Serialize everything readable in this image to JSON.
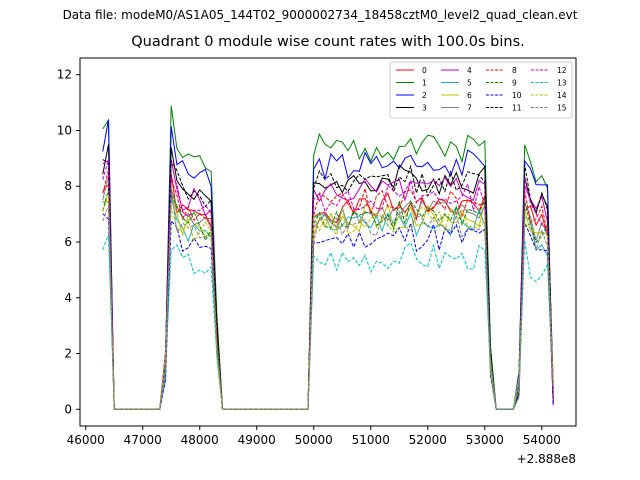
{
  "figure": {
    "suptitle": "Data file: modeM0/AS1A05_144T02_9000002734_18458cztM0_level2_quad_clean.evt",
    "title": "Quadrant 0 module wise count rates with 100.0s bins.",
    "x_offset_label": "+2.888e8"
  },
  "chart_data": {
    "type": "line",
    "title": "Quadrant 0 module wise count rates with 100.0s bins.",
    "xlabel": "",
    "ylabel": "",
    "x_offset": 288800000,
    "xlim": [
      45900,
      54600
    ],
    "ylim": [
      -0.6,
      12.6
    ],
    "xticks": [
      46000,
      47000,
      48000,
      49000,
      50000,
      51000,
      52000,
      53000,
      54000
    ],
    "yticks": [
      0,
      2,
      4,
      6,
      8,
      10,
      12
    ],
    "legend_position": "top-right",
    "grid": false,
    "x": [
      46300,
      46400,
      46500,
      46600,
      46700,
      46800,
      46900,
      47000,
      47100,
      47200,
      47300,
      47400,
      47500,
      47600,
      47700,
      47800,
      47900,
      48000,
      48100,
      48200,
      48300,
      48400,
      48500,
      48600,
      48700,
      48800,
      48900,
      49000,
      49100,
      49200,
      49300,
      49400,
      49500,
      49600,
      49700,
      49800,
      49900,
      50000,
      50100,
      50200,
      50300,
      50400,
      50500,
      50600,
      50700,
      50800,
      50900,
      51000,
      51100,
      51200,
      51300,
      51400,
      51500,
      51600,
      51700,
      51800,
      51900,
      52000,
      52100,
      52200,
      52300,
      52400,
      52500,
      52600,
      52700,
      52800,
      52900,
      53000,
      53100,
      53200,
      53300,
      53400,
      53500,
      53600,
      53700,
      53800,
      53900,
      54000,
      54100,
      54200
    ],
    "shape": [
      0.95,
      1.0,
      0.0,
      0.0,
      0.0,
      0.0,
      0.0,
      0.0,
      0.0,
      0.0,
      0.0,
      0.2,
      1.0,
      0.9,
      0.85,
      0.85,
      0.84,
      0.85,
      0.82,
      0.78,
      0.3,
      0.0,
      0.0,
      0.0,
      0.0,
      0.0,
      0.0,
      0.0,
      0.0,
      0.0,
      0.0,
      0.0,
      0.0,
      0.0,
      0.0,
      0.0,
      0.0,
      0.85,
      0.88,
      0.87,
      0.88,
      0.87,
      0.88,
      0.86,
      0.88,
      0.87,
      0.89,
      0.87,
      0.88,
      0.88,
      0.89,
      0.87,
      0.9,
      0.88,
      0.91,
      0.87,
      0.89,
      0.88,
      0.9,
      0.87,
      0.89,
      0.88,
      0.9,
      0.87,
      0.89,
      0.88,
      0.89,
      0.9,
      0.2,
      0.0,
      0.0,
      0.0,
      0.0,
      0.1,
      0.92,
      0.85,
      0.8,
      0.82,
      0.78,
      0.06
    ],
    "series": [
      {
        "name": "0",
        "color": "#ff0000",
        "dash": "solid",
        "level": 8.2,
        "seed": 1
      },
      {
        "name": "1",
        "color": "#008000",
        "dash": "solid",
        "level": 10.7,
        "seed": 2
      },
      {
        "name": "2",
        "color": "#0000ff",
        "dash": "solid",
        "level": 10.0,
        "seed": 3
      },
      {
        "name": "3",
        "color": "#000000",
        "dash": "solid",
        "level": 9.3,
        "seed": 4
      },
      {
        "name": "4",
        "color": "#bf00bf",
        "dash": "solid",
        "level": 8.9,
        "seed": 5
      },
      {
        "name": "5",
        "color": "#20b2aa",
        "dash": "solid",
        "level": 7.6,
        "seed": 6
      },
      {
        "name": "6",
        "color": "#bfbf00",
        "dash": "solid",
        "level": 7.8,
        "seed": 7
      },
      {
        "name": "7",
        "color": "#808080",
        "dash": "solid",
        "level": 8.0,
        "seed": 8
      },
      {
        "name": "8",
        "color": "#ff0000",
        "dash": "dashed",
        "level": 8.4,
        "seed": 9
      },
      {
        "name": "9",
        "color": "#008000",
        "dash": "dashed",
        "level": 7.9,
        "seed": 10
      },
      {
        "name": "10",
        "color": "#0000ff",
        "dash": "dashed",
        "level": 7.0,
        "seed": 11
      },
      {
        "name": "11",
        "color": "#000000",
        "dash": "dashed",
        "level": 9.2,
        "seed": 12
      },
      {
        "name": "12",
        "color": "#bf00bf",
        "dash": "dashed",
        "level": 8.6,
        "seed": 13
      },
      {
        "name": "13",
        "color": "#00bfbf",
        "dash": "dashed",
        "level": 6.1,
        "seed": 14
      },
      {
        "name": "14",
        "color": "#bfbf00",
        "dash": "dashed",
        "level": 7.7,
        "seed": 15
      },
      {
        "name": "15",
        "color": "#808080",
        "dash": "dashed",
        "level": 7.5,
        "seed": 16
      }
    ]
  }
}
